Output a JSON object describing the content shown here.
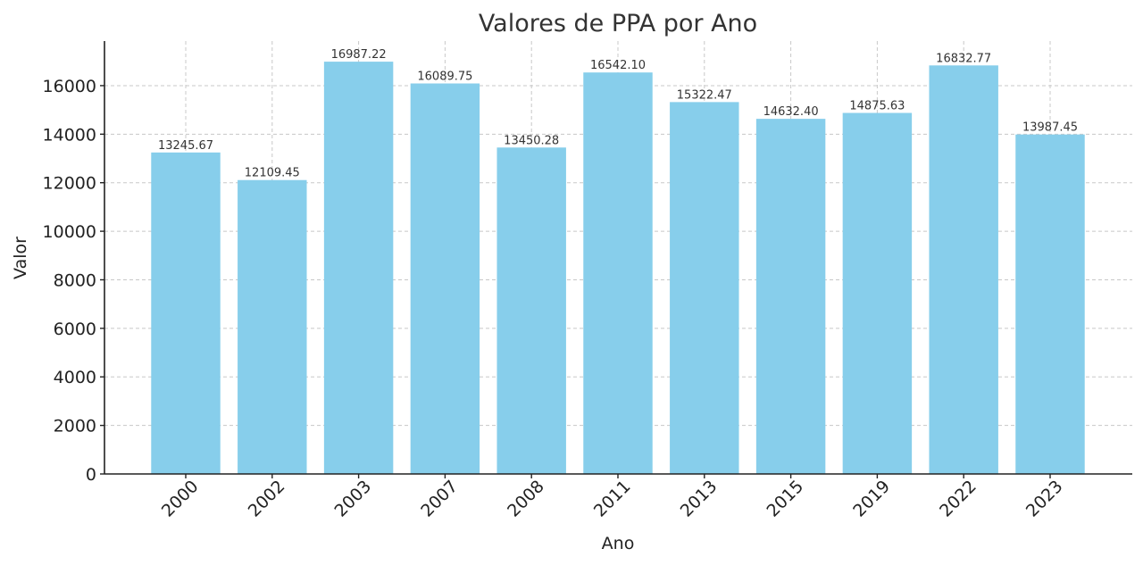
{
  "chart_data": {
    "type": "bar",
    "title": "Valores de PPA por Ano",
    "xlabel": "Ano",
    "ylabel": "Valor",
    "categories": [
      "2000",
      "2002",
      "2003",
      "2007",
      "2008",
      "2011",
      "2013",
      "2015",
      "2019",
      "2022",
      "2023"
    ],
    "values": [
      13245.67,
      12109.45,
      16987.22,
      16089.75,
      13450.28,
      16542.1,
      15322.47,
      14632.4,
      14875.63,
      16832.77,
      13987.45
    ],
    "value_labels": [
      "13245.67",
      "12109.45",
      "16987.22",
      "16089.75",
      "13450.28",
      "16542.10",
      "15322.47",
      "14632.40",
      "14875.63",
      "16832.77",
      "13987.45"
    ],
    "yticks": [
      0,
      2000,
      4000,
      6000,
      8000,
      10000,
      12000,
      14000,
      16000
    ],
    "ylim": [
      0,
      17836.58
    ],
    "grid": true,
    "bar_color": "#87ceeb"
  }
}
